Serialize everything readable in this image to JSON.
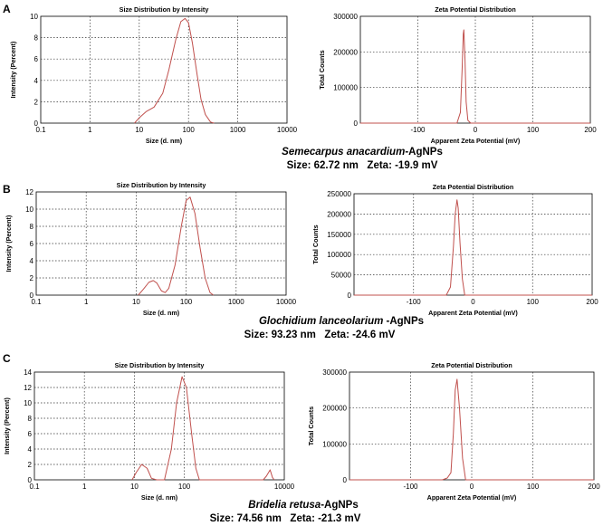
{
  "panels": [
    {
      "letter": "A",
      "caption_name": "Semecarpus anacardium",
      "caption_suffix": "-AgNPs",
      "caption_line2": "Size: 62.72 nm   Zeta: -19.9 mV"
    },
    {
      "letter": "B",
      "caption_name": "Glochidium lanceolarium",
      "caption_suffix": " -AgNPs",
      "caption_line2": "Size: 93.23 nm   Zeta: -24.6 mV"
    },
    {
      "letter": "C",
      "caption_name": "Bridelia retusa",
      "caption_suffix": "-AgNPs",
      "caption_line2": "Size: 74.56 nm   Zeta: -21.3 mV"
    }
  ],
  "colors": {
    "curve": "#c0504d",
    "grid": "#333333",
    "axis": "#000000"
  },
  "chart_data": [
    {
      "id": "A-size",
      "type": "line",
      "title": "Size Distribution by Intensity",
      "xlabel": "Size (d. nm)",
      "ylabel": "Intensity (Percent)",
      "xscale": "log",
      "xlim": [
        0.1,
        10000
      ],
      "xticks": [
        0.1,
        1,
        10,
        100,
        1000,
        10000
      ],
      "xticklabels": [
        "0.1",
        "1",
        "10",
        "100",
        "1000",
        "10000"
      ],
      "ylim": [
        0,
        10
      ],
      "yticks": [
        0,
        2,
        4,
        6,
        8,
        10
      ],
      "yticklabels": [
        "0",
        "2",
        "4",
        "6",
        "8",
        "10"
      ],
      "grid": true,
      "series": [
        {
          "x": [
            8,
            10,
            14,
            20,
            30,
            40,
            55,
            70,
            85,
            100,
            120,
            150,
            180,
            220,
            280,
            330
          ],
          "y": [
            0,
            0.5,
            1.1,
            1.5,
            2.8,
            5.0,
            7.8,
            9.5,
            9.8,
            9.4,
            7.5,
            4.5,
            2.2,
            0.8,
            0.1,
            0
          ]
        }
      ]
    },
    {
      "id": "A-zeta",
      "type": "line",
      "title": "Zeta Potential Distribution",
      "xlabel": "Apparent Zeta Potential (mV)",
      "ylabel": "Total Counts",
      "xscale": "linear",
      "xlim": [
        -200,
        200
      ],
      "xticks": [
        -100,
        0,
        100,
        200
      ],
      "xticklabels": [
        "-100",
        "0",
        "100",
        "200"
      ],
      "ylim": [
        0,
        300000
      ],
      "yticks": [
        0,
        100000,
        200000,
        300000
      ],
      "yticklabels": [
        "0",
        "100000",
        "200000",
        "300000"
      ],
      "grid": true,
      "series": [
        {
          "x": [
            -200,
            -32,
            -26,
            -23,
            -21,
            -20,
            -18,
            -16,
            -13,
            -8,
            200
          ],
          "y": [
            0,
            0,
            30000,
            150000,
            250000,
            262000,
            180000,
            60000,
            8000,
            0,
            0
          ]
        }
      ]
    },
    {
      "id": "B-size",
      "type": "line",
      "title": "Size Distribution by Intensity",
      "xlabel": "Size (d. nm)",
      "ylabel": "Intensity (Percent)",
      "xscale": "log",
      "xlim": [
        0.1,
        10000
      ],
      "xticks": [
        0.1,
        1,
        10,
        100,
        1000,
        10000
      ],
      "xticklabels": [
        "0.1",
        "1",
        "10",
        "100",
        "1000",
        "10000"
      ],
      "ylim": [
        0,
        12
      ],
      "yticks": [
        0,
        2,
        4,
        6,
        8,
        10,
        12
      ],
      "yticklabels": [
        "0",
        "2",
        "4",
        "6",
        "8",
        "10",
        "12"
      ],
      "grid": true,
      "series": [
        {
          "x": [
            11,
            14,
            18,
            22,
            26,
            32,
            38,
            45,
            60,
            80,
            100,
            120,
            150,
            190,
            240,
            300,
            350
          ],
          "y": [
            0,
            0.7,
            1.5,
            1.7,
            1.4,
            0.5,
            0.3,
            0.8,
            3.5,
            8.0,
            11.0,
            11.4,
            9.5,
            5.5,
            2.0,
            0.3,
            0
          ]
        }
      ]
    },
    {
      "id": "B-zeta",
      "type": "line",
      "title": "Zeta Potential Distribution",
      "xlabel": "Apparent Zeta Potential (mV)",
      "ylabel": "Total Counts",
      "xscale": "linear",
      "xlim": [
        -200,
        200
      ],
      "xticks": [
        -100,
        0,
        100,
        200
      ],
      "xticklabels": [
        "-100",
        "0",
        "100",
        "200"
      ],
      "ylim": [
        0,
        250000
      ],
      "yticks": [
        0,
        50000,
        100000,
        150000,
        200000,
        250000
      ],
      "yticklabels": [
        "0",
        "50000",
        "100000",
        "150000",
        "200000",
        "250000"
      ],
      "grid": true,
      "series": [
        {
          "x": [
            -200,
            -45,
            -38,
            -33,
            -30,
            -27,
            -25,
            -22,
            -18,
            -14,
            200
          ],
          "y": [
            0,
            0,
            20000,
            120000,
            200000,
            235000,
            215000,
            130000,
            40000,
            0,
            0
          ]
        }
      ]
    },
    {
      "id": "C-size",
      "type": "line",
      "title": "Size Distribution by Intensity",
      "xlabel": "Size (d. nm)",
      "ylabel": "Intensity (Percent)",
      "xscale": "log",
      "xlim": [
        0.1,
        10000
      ],
      "xticks": [
        0.1,
        1,
        10,
        100,
        10000
      ],
      "xticklabels": [
        "0.1",
        "1",
        "10",
        "100",
        "10000"
      ],
      "ylim": [
        0,
        14
      ],
      "yticks": [
        0,
        2,
        4,
        6,
        8,
        10,
        12,
        14
      ],
      "yticklabels": [
        "0",
        "2",
        "4",
        "6",
        "8",
        "10",
        "12",
        "14"
      ],
      "grid": true,
      "series": [
        {
          "x": [
            9,
            11,
            14,
            18,
            22,
            28,
            40,
            55,
            70,
            90,
            110,
            140,
            170,
            200,
            300,
            3800,
            4400,
            5200,
            5800,
            6300
          ],
          "y": [
            0,
            1.0,
            2.0,
            1.5,
            0.2,
            0,
            0,
            4.0,
            10.0,
            13.4,
            12.0,
            6.0,
            1.5,
            0,
            0,
            0,
            0.5,
            1.3,
            0.3,
            0
          ]
        }
      ]
    },
    {
      "id": "C-zeta",
      "type": "line",
      "title": "Zeta Potential Distribution",
      "xlabel": "Apparent Zeta Potential (mV)",
      "ylabel": "Total Counts",
      "xscale": "linear",
      "xlim": [
        -200,
        200
      ],
      "xticks": [
        -100,
        0,
        100,
        200
      ],
      "xticklabels": [
        "-100",
        "0",
        "100",
        "200"
      ],
      "ylim": [
        0,
        300000
      ],
      "yticks": [
        0,
        100000,
        200000,
        300000
      ],
      "yticklabels": [
        "0",
        "100000",
        "200000",
        "300000"
      ],
      "grid": true,
      "series": [
        {
          "x": [
            -200,
            -48,
            -40,
            -34,
            -30,
            -27,
            -24,
            -20,
            -15,
            -10,
            200
          ],
          "y": [
            0,
            0,
            5000,
            20000,
            130000,
            250000,
            280000,
            200000,
            60000,
            0,
            0
          ]
        }
      ]
    }
  ]
}
